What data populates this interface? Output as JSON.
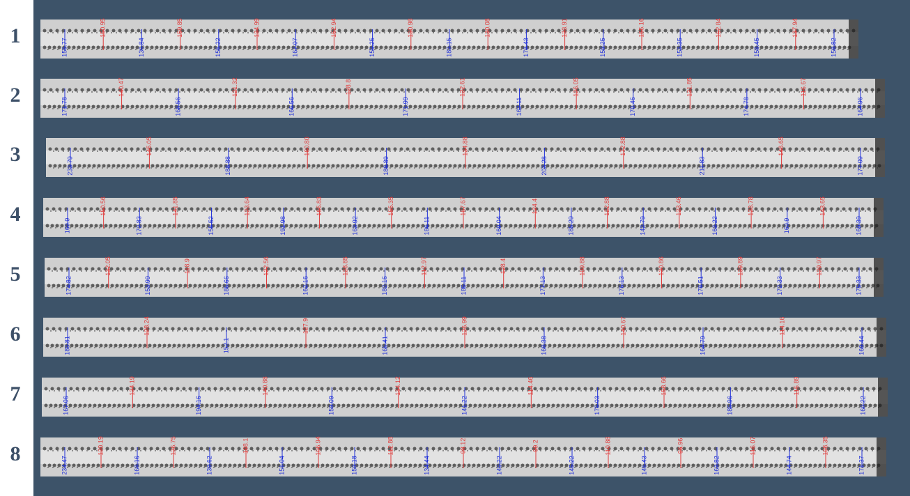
{
  "label_colors": {
    "blue": "#2030d8",
    "red": "#e03a3a"
  },
  "rows": [
    {
      "label": "1",
      "blue": [
        "156.77",
        "136.84",
        "155.22",
        "167.07",
        "159.25",
        "183.15",
        "173.43",
        "159.25",
        "153.35",
        "158.45",
        "158.82"
      ],
      "red": [
        "150.95",
        "159.85",
        "134.99",
        "152.94",
        "130.98",
        "130.08",
        "133.91",
        "155.16",
        "152.84",
        "137.94"
      ]
    },
    {
      "label": "2",
      "blue": [
        "171.78",
        "168.56",
        "166.56",
        "171.99",
        "162.11",
        "170.46",
        "174.78",
        "164.96"
      ],
      "red": [
        "140.47",
        "121.32",
        "128.8",
        "122.61",
        "126.05",
        "131.85",
        "116.67"
      ]
    },
    {
      "label": "3",
      "blue": [
        "233.79",
        "188.88",
        "188.89",
        "203.28",
        "211.83",
        "177.09"
      ],
      "red": [
        "145.05",
        "160.80",
        "134.88",
        "172.88",
        "146.65"
      ]
    },
    {
      "label": "4",
      "blue": [
        "169.9",
        "172.83",
        "155.52",
        "191.98",
        "163.92",
        "186.11",
        "169.04",
        "185.29",
        "142.79",
        "163.22",
        "160.9",
        "169.39"
      ],
      "red": [
        "150.56",
        "141.85",
        "123.64",
        "165.83",
        "155.35",
        "167.67",
        "124.4",
        "122.88",
        "123.46",
        "123.78",
        "143.65"
      ]
    },
    {
      "label": "5",
      "blue": [
        "174.82",
        "153.99",
        "186.66",
        "162.16",
        "182.16",
        "185.11",
        "177.13",
        "176.13",
        "178.51",
        "172.33",
        "175.33"
      ],
      "red": [
        "132.05",
        "118.9",
        "122.56",
        "128.85",
        "112.97",
        "128.4",
        "109.88",
        "130.86",
        "139.89",
        "129.97"
      ]
    },
    {
      "label": "6",
      "blue": [
        "180.81",
        "152.1",
        "165.41",
        "168.38",
        "164.79",
        "169.44"
      ],
      "red": [
        "128.24",
        "127.9",
        "126.99",
        "140.67",
        "114.16"
      ]
    },
    {
      "label": "7",
      "blue": [
        "167.06",
        "194.16",
        "159.09",
        "141.22",
        "175.03",
        "185.96",
        "160.22"
      ],
      "red": [
        "134.19",
        "140.88",
        "134.12",
        "114.46",
        "158.66",
        "115.89"
      ]
    },
    {
      "label": "8",
      "blue": [
        "234.47",
        "168.16",
        "139.62",
        "151.04",
        "159.18",
        "134.44",
        "140.22",
        "145.22",
        "145.43",
        "163.82",
        "144.74",
        "171.37"
      ],
      "red": [
        "120.19",
        "126.75",
        "108.1",
        "106.94",
        "112.88",
        "98.12",
        "99.2",
        "110.88",
        "96.96",
        "116.07",
        "108.35"
      ]
    }
  ]
}
